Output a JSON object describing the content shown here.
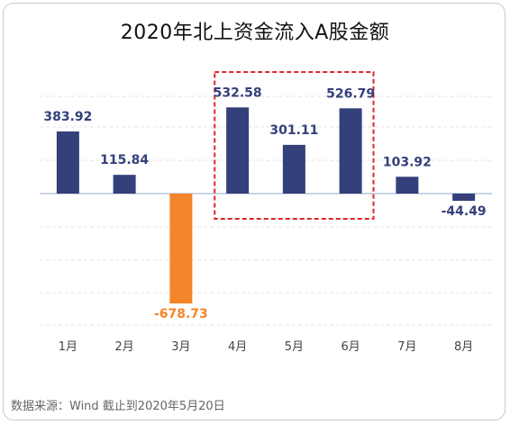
{
  "chart_data": {
    "type": "bar",
    "title": "2020年北上资金流入A股金额",
    "categories": [
      "1月",
      "2月",
      "3月",
      "4月",
      "5月",
      "6月",
      "7月",
      "8月"
    ],
    "values": [
      383.92,
      115.84,
      -678.73,
      532.58,
      301.11,
      526.79,
      103.92,
      -44.49
    ],
    "value_labels": [
      "383.92",
      "115.84",
      "-678.73",
      "532.58",
      "301.11",
      "526.79",
      "103.92",
      "-44.49"
    ],
    "colors": {
      "positive": "#33407a",
      "negative_highlight": "#f5852a",
      "negative": "#33407a",
      "highlight_box": "#e0252a",
      "grid": "#e3e3e3",
      "baseline": "#b9c6dc"
    },
    "highlight_bar_index": 2,
    "highlight_box_categories": [
      "4月",
      "5月",
      "6月"
    ],
    "grid": true,
    "ylim": [
      -800,
      700
    ]
  },
  "footer": {
    "source": "数据来源：Wind  截止到2020年5月20日"
  }
}
